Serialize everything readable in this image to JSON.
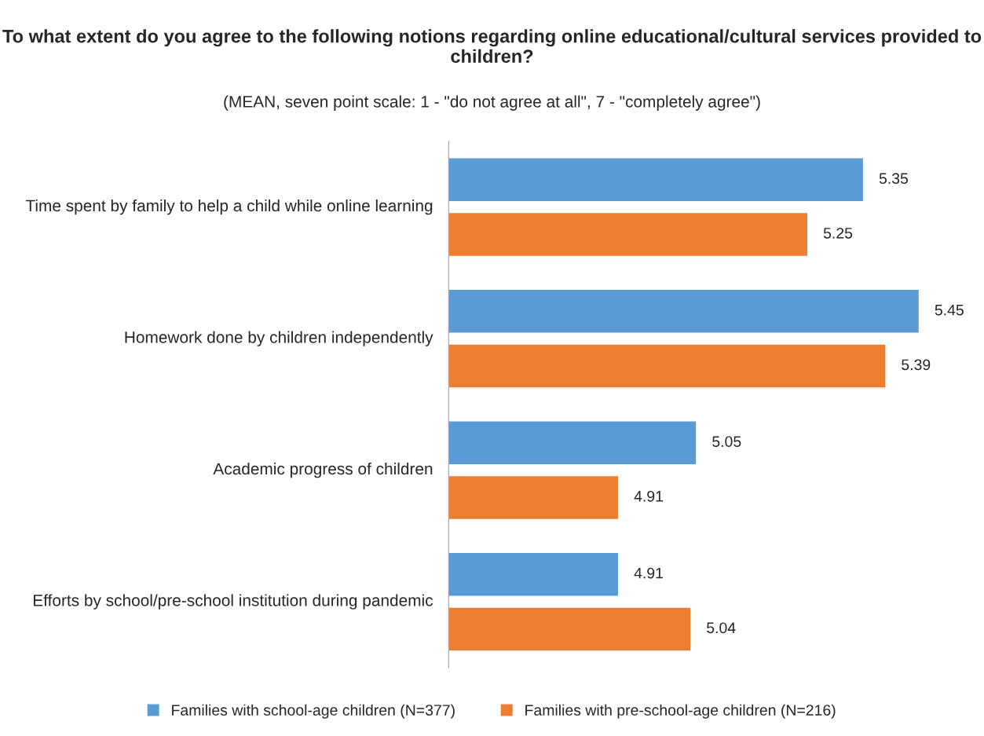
{
  "chart_data": {
    "type": "bar",
    "orientation": "horizontal",
    "title": "To what extent do you agree to the following notions regarding online educational/cultural services provided to children?",
    "subtitle": "(MEAN, seven point scale: 1 - \"do not agree at all\", 7 - \"completely agree\")",
    "categories": [
      "Time spent by family to help a child while online learning",
      "Homework done by children independently",
      "Academic progress of children",
      "Efforts by school/pre-school institution during pandemic"
    ],
    "series": [
      {
        "name": "Families with school-age children (N=377)",
        "color": "#5b9bd5",
        "values": [
          5.35,
          5.45,
          5.05,
          4.91
        ]
      },
      {
        "name": "Families with pre-school-age children (N=216)",
        "color": "#ed7d31",
        "values": [
          5.25,
          5.39,
          4.91,
          5.04
        ]
      }
    ],
    "data_labels": true,
    "grid": false,
    "legend": "bottom",
    "tick_labels": "y"
  }
}
